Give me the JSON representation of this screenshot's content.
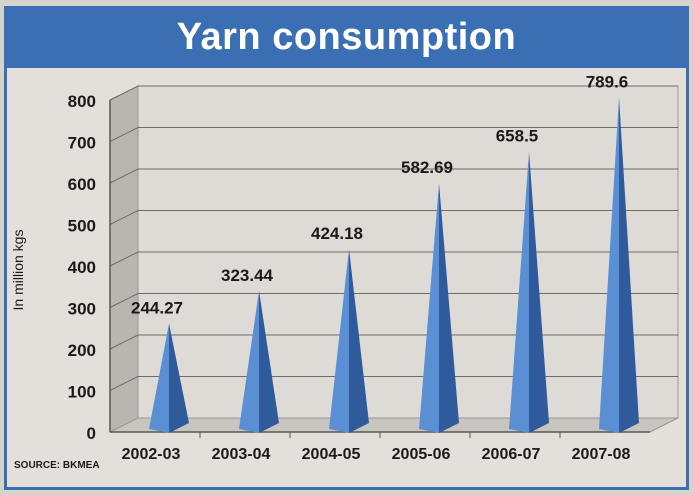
{
  "chart_data": {
    "type": "bar",
    "title": "Yarn consumption",
    "ylabel": "In million kgs",
    "xlabel": "",
    "categories": [
      "2002-03",
      "2003-04",
      "2004-05",
      "2005-06",
      "2006-07",
      "2007-08"
    ],
    "values": [
      244.27,
      323.44,
      424.18,
      582.69,
      658.5,
      789.6
    ],
    "value_labels": [
      "244.27",
      "323.44",
      "424.18",
      "582.69",
      "658.5",
      "789.6"
    ],
    "yticks": [
      "0",
      "100",
      "200",
      "300",
      "400",
      "500",
      "600",
      "700",
      "800"
    ],
    "ylim": [
      0,
      800
    ],
    "grid": true,
    "bar_shape": "pyramid",
    "colors": {
      "bar_light": "#5b8fd4",
      "bar_dark": "#2f5a9c",
      "title_bg": "#3a6fb4"
    }
  },
  "source": "SOURCE: BKMEA"
}
